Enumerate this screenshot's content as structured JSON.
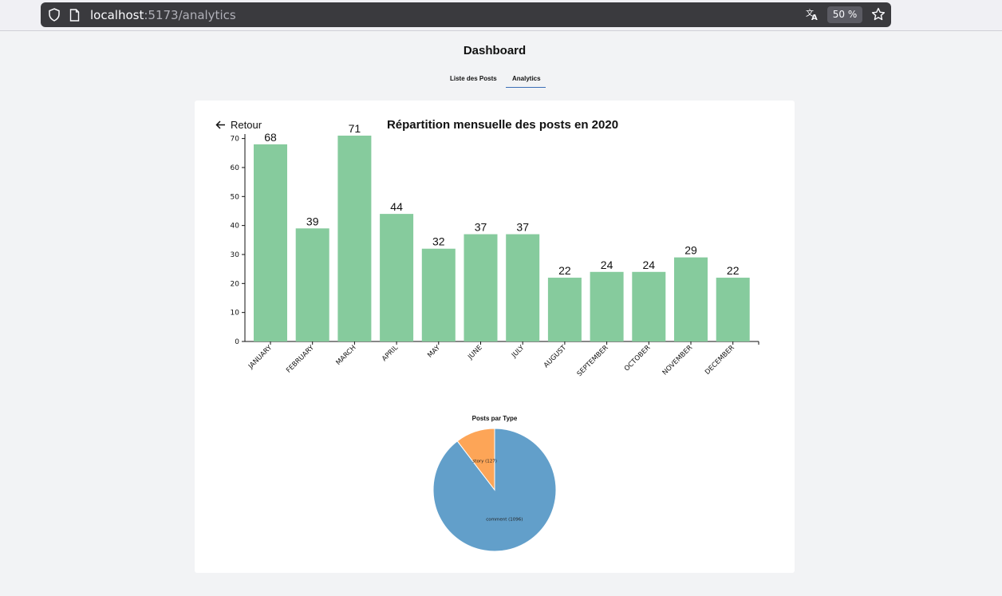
{
  "browser": {
    "url_host": "localhost",
    "url_path": ":5173/analytics",
    "zoom": "50 %"
  },
  "page": {
    "title": "Dashboard",
    "tabs": [
      {
        "label": "Liste des Posts",
        "active": false
      },
      {
        "label": "Analytics",
        "active": true
      }
    ],
    "back_label": "Retour"
  },
  "colors": {
    "bar": "#86cb9d",
    "pie_comment": "#629fca",
    "pie_story": "#fda557",
    "tab_underline": "#3b6fb6"
  },
  "chart_data": [
    {
      "type": "bar",
      "title": "Répartition mensuelle des posts en 2020",
      "categories": [
        "JANUARY",
        "FEBRUARY",
        "MARCH",
        "APRIL",
        "MAY",
        "JUNE",
        "JULY",
        "AUGUST",
        "SEPTEMBER",
        "OCTOBER",
        "NOVEMBER",
        "DECEMBER"
      ],
      "values": [
        68,
        39,
        71,
        44,
        32,
        37,
        37,
        22,
        24,
        24,
        29,
        22
      ],
      "yticks": [
        0,
        10,
        20,
        30,
        40,
        50,
        60,
        70
      ],
      "ylim": [
        0,
        71
      ],
      "xlabel": "",
      "ylabel": "",
      "grid": false
    },
    {
      "type": "pie",
      "title": "Posts par Type",
      "labels": [
        "comment (1096)",
        "story (127)"
      ],
      "values": [
        1096,
        127
      ]
    }
  ]
}
